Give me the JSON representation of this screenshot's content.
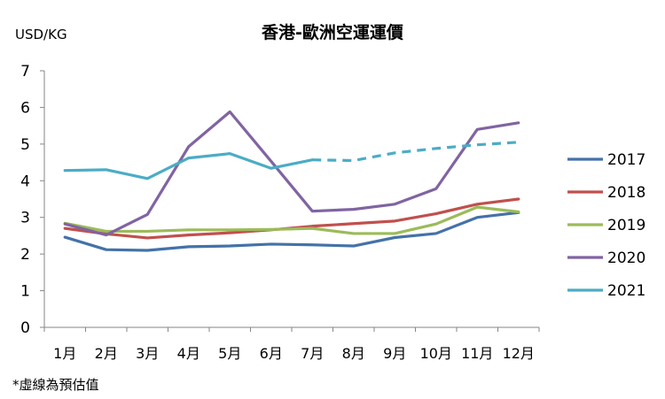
{
  "chart_data": {
    "type": "line",
    "title": "香港-歐洲空運運價",
    "ylabel": "USD/KG",
    "note": "*虛線為預估值",
    "categories": [
      "1月",
      "2月",
      "3月",
      "4月",
      "5月",
      "6月",
      "7月",
      "8月",
      "9月",
      "10月",
      "11月",
      "12月"
    ],
    "yticks": [
      "0",
      "1",
      "2",
      "3",
      "4",
      "5",
      "6",
      "7"
    ],
    "ylim": [
      0,
      7
    ],
    "grid": false,
    "legend": "right",
    "series": [
      {
        "name": "2017",
        "color": "#4472a8",
        "values": [
          2.46,
          2.12,
          2.1,
          2.2,
          2.22,
          2.27,
          2.25,
          2.22,
          2.45,
          2.56,
          3.0,
          3.13
        ]
      },
      {
        "name": "2018",
        "color": "#c0504d",
        "values": [
          2.7,
          2.55,
          2.44,
          2.52,
          2.58,
          2.66,
          2.76,
          2.83,
          2.9,
          3.1,
          3.36,
          3.5
        ]
      },
      {
        "name": "2019",
        "color": "#9bbb59",
        "values": [
          2.84,
          2.62,
          2.62,
          2.66,
          2.66,
          2.67,
          2.7,
          2.56,
          2.56,
          2.82,
          3.28,
          3.15
        ]
      },
      {
        "name": "2020",
        "color": "#8064a2",
        "values": [
          2.82,
          2.52,
          3.08,
          4.93,
          5.88,
          4.53,
          3.17,
          3.22,
          3.36,
          3.78,
          5.4,
          5.58
        ]
      },
      {
        "name": "2021",
        "color": "#4bacc6",
        "values": [
          4.28,
          4.3,
          4.06,
          4.62,
          4.74,
          4.34,
          4.57,
          4.55,
          4.76,
          4.88,
          4.98,
          5.05
        ],
        "estimated_from_index": 6
      }
    ]
  }
}
